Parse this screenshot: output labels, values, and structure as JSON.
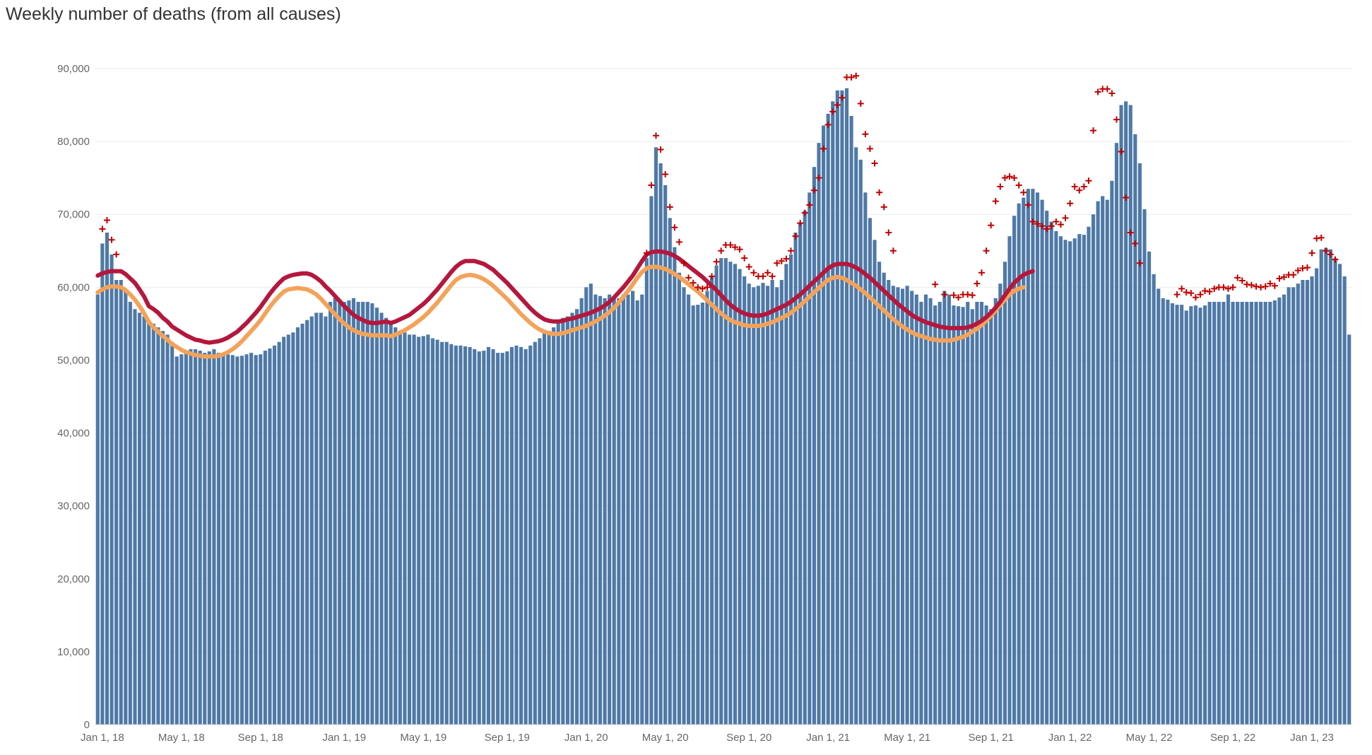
{
  "title": "Weekly number of deaths (from all causes)",
  "chart_data": {
    "type": "bar",
    "title": "Weekly number of deaths (from all causes)",
    "xlabel": "",
    "ylabel": "",
    "ylim": [
      0,
      90000
    ],
    "y_ticks": [
      0,
      10000,
      20000,
      30000,
      40000,
      50000,
      60000,
      70000,
      80000,
      90000
    ],
    "y_tick_labels": [
      "0",
      "10,000",
      "20,000",
      "30,000",
      "40,000",
      "50,000",
      "60,000",
      "70,000",
      "80,000",
      "90,000"
    ],
    "x_tick_labels": [
      "Jan 1, 18",
      "May 1, 18",
      "Sep 1, 18",
      "Jan 1, 19",
      "May 1, 19",
      "Sep 1, 19",
      "Jan 1, 20",
      "May 1, 20",
      "Sep 1, 20",
      "Jan 1, 21",
      "May 1, 21",
      "Sep 1, 21",
      "Jan 1, 22",
      "May 1, 22",
      "Sep 1, 22",
      "Jan 1, 23"
    ],
    "x_tick_weeks": [
      1,
      18,
      35,
      53,
      70,
      88,
      105,
      122,
      140,
      157,
      174,
      192,
      209,
      226,
      244,
      261
    ],
    "grid": true,
    "legend": "none",
    "colors": {
      "bars": "#4e79a7",
      "upper_threshold": "#b5173d",
      "expected": "#f4a259",
      "markers": "#c00000"
    },
    "series": [
      {
        "type": "bar",
        "values": [
          59000,
          66000,
          67500,
          64500,
          61000,
          61000,
          59500,
          58000,
          57000,
          56500,
          56000,
          55500,
          55000,
          54500,
          54000,
          53500,
          52500,
          50500,
          50800,
          51000,
          51500,
          51500,
          51300,
          51000,
          51200,
          51500,
          51000,
          51000,
          50800,
          50700,
          50500,
          50600,
          50800,
          51000,
          50700,
          50800,
          51300,
          51600,
          52000,
          52500,
          53200,
          53500,
          53800,
          54500,
          55000,
          55500,
          56000,
          56500,
          56500,
          56000,
          58000,
          58500,
          58200,
          58000,
          58200,
          58500,
          58000,
          58000,
          58000,
          57800,
          57200,
          56500,
          55800,
          55200,
          54500,
          54000,
          53800,
          53500,
          53500,
          53200,
          53300,
          53500,
          53000,
          52800,
          52500,
          52500,
          52200,
          52000,
          52000,
          51900,
          51800,
          51500,
          51200,
          51300,
          51800,
          51500,
          51000,
          51000,
          51200,
          51800,
          52000,
          51800,
          51500,
          52000,
          52500,
          53000,
          54000,
          54000,
          54500,
          55500,
          55800,
          56000,
          56500,
          57000,
          58500,
          60000,
          60500,
          59000,
          58800,
          58500,
          59000,
          58500,
          58500,
          59000,
          59000,
          59500,
          58200,
          59000,
          64000,
          72500,
          79200,
          77000,
          74000,
          69500,
          65500,
          62000,
          60000,
          59000,
          57500,
          57600,
          57900,
          59500,
          61500,
          63000,
          64000,
          64000,
          63500,
          63200,
          62500,
          61500,
          60500,
          60000,
          60200,
          60600,
          60200,
          61000,
          60000,
          61000,
          63200,
          64500,
          67500,
          68800,
          70500,
          73000,
          76500,
          79800,
          82200,
          83800,
          85500,
          87000,
          87000,
          87300,
          83500,
          79200,
          77500,
          73000,
          69500,
          66500,
          63500,
          62000,
          61000,
          60200,
          60000,
          59800,
          60200,
          59500,
          59000,
          58000,
          59000,
          58500,
          57500,
          58000,
          59500,
          59000,
          57500,
          57400,
          57300,
          58000,
          57000,
          58000,
          58000,
          57500,
          57000,
          58500,
          60500,
          63500,
          67000,
          69800,
          71500,
          72300,
          73500,
          73500,
          73000,
          72000,
          70500,
          69000,
          67700,
          67000,
          66500,
          66300,
          66700,
          67300,
          67200,
          68300,
          70000,
          71800,
          72500,
          72000,
          74600,
          79800,
          85000,
          85500,
          85000,
          81000,
          77000,
          70700,
          64900,
          61800,
          59800,
          58500,
          58300,
          57800,
          57600,
          57600,
          56800,
          57400,
          57500,
          57200,
          57500,
          58000,
          58000,
          58000,
          58000,
          59000,
          58000,
          58000,
          58000,
          58000,
          58000,
          58000,
          58000,
          58000,
          58000,
          58200,
          58600,
          59000,
          60000,
          60000,
          60500,
          61000,
          61000,
          61500,
          62600,
          65200,
          65400,
          65200,
          64000,
          63200,
          61500,
          53500
        ]
      },
      {
        "name": "",
        "type": "line",
        "values": [
          61600,
          61900,
          62100,
          62200,
          62200,
          62200,
          61800,
          61200,
          60600,
          59700,
          58700,
          57400,
          57000,
          56500,
          55800,
          55300,
          54600,
          54200,
          53800,
          53400,
          53100,
          52800,
          52700,
          52500,
          52400,
          52500,
          52600,
          52800,
          53100,
          53500,
          53900,
          54500,
          55100,
          55800,
          56500,
          57300,
          58200,
          59100,
          59900,
          60600,
          61200,
          61500,
          61700,
          61800,
          61900,
          61900,
          61700,
          61300,
          60800,
          60100,
          59500,
          58800,
          58100,
          57400,
          56800,
          56200,
          55800,
          55500,
          55200,
          55100,
          55100,
          55200,
          55300,
          55100,
          55300,
          55600,
          55900,
          56200,
          56700,
          57200,
          57700,
          58300,
          59000,
          59700,
          60500,
          61300,
          62100,
          62800,
          63300,
          63600,
          63600,
          63600,
          63400,
          63200,
          62800,
          62400,
          61800,
          61200,
          60600,
          59900,
          59200,
          58500,
          57800,
          57100,
          56500,
          56000,
          55600,
          55400,
          55300,
          55300,
          55400,
          55600,
          55700,
          55900,
          56100,
          56300,
          56500,
          56800,
          57100,
          57500,
          58000,
          58600,
          59300,
          60000,
          60800,
          61600,
          62600,
          63600,
          64500,
          64800,
          64900,
          64900,
          64800,
          64600,
          64300,
          63900,
          63400,
          62900,
          62400,
          61900,
          61400,
          60800,
          60200,
          59600,
          58900,
          58200,
          57600,
          57100,
          56700,
          56400,
          56200,
          56100,
          56100,
          56200,
          56400,
          56700,
          57000,
          57300,
          57600,
          58000,
          58500,
          59000,
          59600,
          60200,
          60800,
          61400,
          62000,
          62600,
          63000,
          63200,
          63200,
          63200,
          63000,
          62700,
          62300,
          61800,
          61300,
          60700,
          60100,
          59500,
          58900,
          58300,
          57700,
          57200,
          56700,
          56200,
          55800,
          55500,
          55200,
          55000,
          54800,
          54600,
          54500,
          54400,
          54400,
          54400,
          54400,
          54500,
          54700,
          55000,
          55400,
          55900,
          56500,
          57200,
          58000,
          58900,
          59800,
          60600,
          61200,
          61700,
          62000,
          62200
        ]
      },
      {
        "name": "",
        "type": "line",
        "values": [
          59300,
          59700,
          60000,
          60100,
          60100,
          60000,
          59600,
          59000,
          58300,
          57400,
          56400,
          55200,
          54500,
          53900,
          53300,
          52800,
          52200,
          51800,
          51400,
          51100,
          50900,
          50700,
          50600,
          50500,
          50500,
          50500,
          50600,
          50800,
          51100,
          51500,
          52000,
          52600,
          53300,
          54000,
          54700,
          55500,
          56400,
          57300,
          58100,
          58800,
          59400,
          59700,
          59800,
          59900,
          59800,
          59700,
          59400,
          59000,
          58400,
          57700,
          57000,
          56300,
          55600,
          55000,
          54500,
          54100,
          53800,
          53600,
          53500,
          53400,
          53400,
          53400,
          53400,
          53300,
          53500,
          53800,
          54100,
          54500,
          54900,
          55400,
          55900,
          56500,
          57200,
          57900,
          58700,
          59500,
          60300,
          61000,
          61400,
          61600,
          61700,
          61600,
          61400,
          61100,
          60700,
          60200,
          59600,
          59000,
          58400,
          57700,
          57000,
          56300,
          55700,
          55100,
          54600,
          54200,
          53900,
          53700,
          53600,
          53600,
          53700,
          53900,
          54100,
          54300,
          54500,
          54700,
          55000,
          55300,
          55700,
          56100,
          56600,
          57200,
          57900,
          58700,
          59500,
          60400,
          61300,
          62100,
          62600,
          62800,
          62800,
          62700,
          62500,
          62200,
          61800,
          61400,
          60900,
          60400,
          59900,
          59400,
          58800,
          58200,
          57600,
          57000,
          56400,
          55900,
          55500,
          55200,
          55000,
          54800,
          54700,
          54700,
          54700,
          54800,
          55000,
          55200,
          55500,
          55800,
          56100,
          56500,
          57000,
          57500,
          58100,
          58700,
          59300,
          59900,
          60500,
          61000,
          61300,
          61400,
          61300,
          61000,
          60600,
          60200,
          59700,
          59200,
          58600,
          58000,
          57400,
          56800,
          56200,
          55600,
          55100,
          54600,
          54200,
          53800,
          53500,
          53300,
          53100,
          52900,
          52800,
          52700,
          52700,
          52700,
          52800,
          53000,
          53200,
          53500,
          53900,
          54300,
          54800,
          55400,
          56100,
          56800,
          57600,
          58300,
          59000,
          59500,
          59800,
          60000
        ]
      },
      {
        "name": "",
        "type": "marker",
        "values": [
          null,
          68000,
          69200,
          66500,
          64500,
          null,
          null,
          null,
          null,
          null,
          null,
          null,
          null,
          null,
          null,
          null,
          null,
          null,
          null,
          null,
          null,
          null,
          null,
          null,
          null,
          null,
          null,
          null,
          null,
          null,
          null,
          null,
          null,
          null,
          null,
          null,
          null,
          null,
          null,
          null,
          null,
          null,
          null,
          null,
          null,
          null,
          null,
          null,
          null,
          null,
          null,
          null,
          null,
          null,
          null,
          null,
          null,
          null,
          null,
          null,
          null,
          null,
          null,
          null,
          null,
          null,
          null,
          null,
          null,
          null,
          null,
          null,
          null,
          null,
          null,
          null,
          null,
          null,
          null,
          null,
          null,
          null,
          null,
          null,
          null,
          null,
          null,
          null,
          null,
          null,
          null,
          null,
          null,
          null,
          null,
          null,
          null,
          null,
          null,
          null,
          null,
          null,
          null,
          null,
          null,
          null,
          null,
          null,
          null,
          null,
          null,
          null,
          null,
          null,
          null,
          null,
          null,
          null,
          64700,
          74000,
          80800,
          78900,
          75500,
          71000,
          68200,
          66200,
          63300,
          61300,
          60600,
          60000,
          59800,
          60000,
          61500,
          63500,
          65000,
          65800,
          65800,
          65500,
          65200,
          64000,
          62800,
          62000,
          61500,
          61500,
          62000,
          61500,
          63300,
          63600,
          63900,
          65000,
          67000,
          68800,
          70200,
          71300,
          73300,
          75000,
          79000,
          82300,
          84100,
          85000,
          86000,
          88800,
          88800,
          89000,
          85200,
          81000,
          79000,
          77000,
          73000,
          71000,
          67500,
          65000,
          null,
          null,
          null,
          null,
          null,
          null,
          null,
          null,
          60400,
          null,
          59000,
          null,
          58900,
          58600,
          59000,
          59000,
          58900,
          60500,
          62000,
          65000,
          68500,
          71800,
          73800,
          75000,
          75200,
          75000,
          74000,
          73000,
          71300,
          69000,
          68700,
          68400,
          68000,
          68400,
          69000,
          68600,
          69500,
          71500,
          73800,
          73300,
          73800,
          74600,
          81500,
          86800,
          87200,
          87200,
          86600,
          83000,
          78600,
          72300,
          67500,
          66000,
          63300,
          null,
          null,
          null,
          null,
          null,
          null,
          null,
          59000,
          59800,
          59300,
          59200,
          58600,
          59000,
          59500,
          59400,
          59800,
          60000,
          60000,
          59800,
          60000,
          61300,
          60900,
          60400,
          60300,
          60100,
          60000,
          60100,
          60500,
          60200,
          61200,
          61400,
          61700,
          61700,
          62300,
          62600,
          62700,
          64700,
          66700,
          66800,
          65000,
          64500,
          63800,
          null
        ]
      }
    ]
  }
}
